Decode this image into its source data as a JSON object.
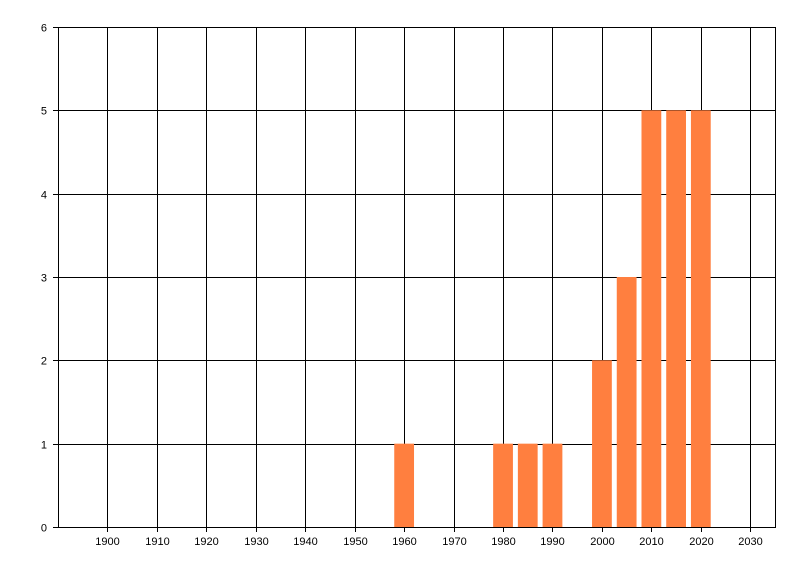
{
  "chart_data": {
    "type": "bar",
    "title": "",
    "xlabel": "",
    "ylabel": "",
    "x": [
      1960,
      1980,
      1985,
      1990,
      2000,
      2005,
      2010,
      2015,
      2020
    ],
    "values": [
      1,
      1,
      1,
      1,
      2,
      3,
      5,
      5,
      5
    ],
    "bar_width_years": 4,
    "xlim": [
      1890,
      2035
    ],
    "ylim": [
      0,
      6
    ],
    "xticks": [
      "1900",
      "1910",
      "1920",
      "1930",
      "1940",
      "1950",
      "1960",
      "1970",
      "1980",
      "1990",
      "2000",
      "2010",
      "2020",
      "2030"
    ],
    "yticks": [
      "0",
      "1",
      "2",
      "3",
      "4",
      "5",
      "6"
    ],
    "grid": true,
    "legend": "none",
    "bar_color": "#FF7F3F",
    "grid_color": "#000000"
  }
}
